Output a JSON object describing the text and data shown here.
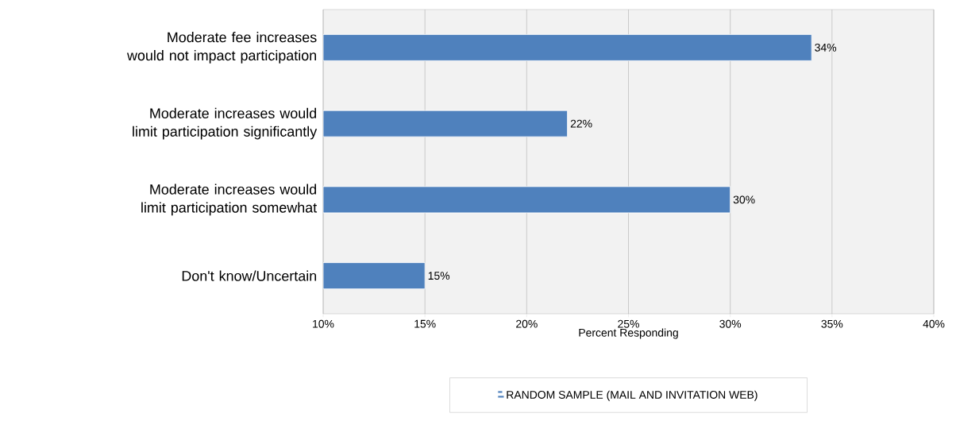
{
  "chart_data": {
    "type": "bar",
    "orientation": "horizontal",
    "categories": [
      "Moderate fee increases would not impact participation",
      "Moderate increases would limit participation significantly",
      "Moderate increases would limit participation somewhat",
      "Don't know/Uncertain"
    ],
    "series": [
      {
        "name": "RANDOM SAMPLE (MAIL AND INVITATION WEB)",
        "color": "#4f81bd",
        "values": [
          34,
          22,
          30,
          15
        ],
        "value_labels": [
          "34%",
          "22%",
          "30%",
          "15%"
        ]
      }
    ],
    "xlabel": "Percent Responding",
    "xlim": [
      10,
      40
    ],
    "xticks": [
      {
        "value": 10,
        "label": "10%"
      },
      {
        "value": 15,
        "label": "15%"
      },
      {
        "value": 20,
        "label": "20%"
      },
      {
        "value": 25,
        "label": "25%"
      },
      {
        "value": 30,
        "label": "30%"
      },
      {
        "value": 35,
        "label": "35%"
      },
      {
        "value": 40,
        "label": "40%"
      }
    ],
    "grid": "x",
    "legend": "bottom"
  }
}
